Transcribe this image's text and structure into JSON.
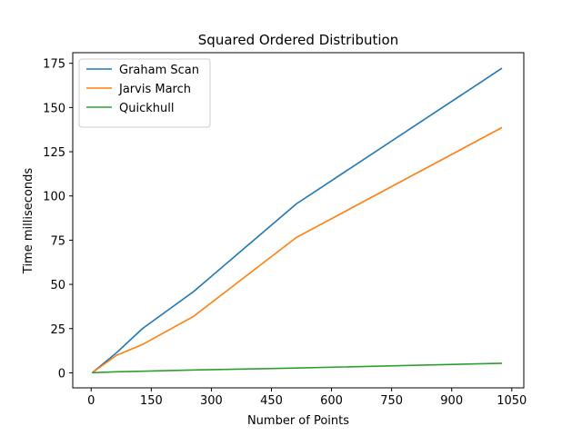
{
  "chart_data": {
    "type": "line",
    "title": "Squared Ordered Distribution",
    "xlabel": "Number of Points",
    "ylabel": "Time milliseconds",
    "xlim": [
      -46,
      1080
    ],
    "ylim": [
      -8.5,
      181
    ],
    "xticks": [
      0,
      150,
      300,
      450,
      600,
      750,
      900,
      1050
    ],
    "yticks": [
      0,
      25,
      50,
      75,
      100,
      125,
      150,
      175
    ],
    "grid": false,
    "legend_position": "top-left",
    "series": [
      {
        "name": "Graham Scan",
        "color": "#1f77b4",
        "x": [
          4,
          64,
          128,
          256,
          512,
          1024
        ],
        "y": [
          0.3,
          11.5,
          25,
          46,
          95.5,
          172
        ]
      },
      {
        "name": "Jarvis March",
        "color": "#ff7f0e",
        "x": [
          4,
          64,
          128,
          256,
          512,
          1024
        ],
        "y": [
          0.3,
          10,
          16,
          32,
          76.5,
          138.5
        ]
      },
      {
        "name": "Quickhull",
        "color": "#2ca02c",
        "x": [
          4,
          64,
          128,
          256,
          512,
          1024
        ],
        "y": [
          0.1,
          0.6,
          0.9,
          1.6,
          2.7,
          5.4
        ]
      }
    ]
  }
}
